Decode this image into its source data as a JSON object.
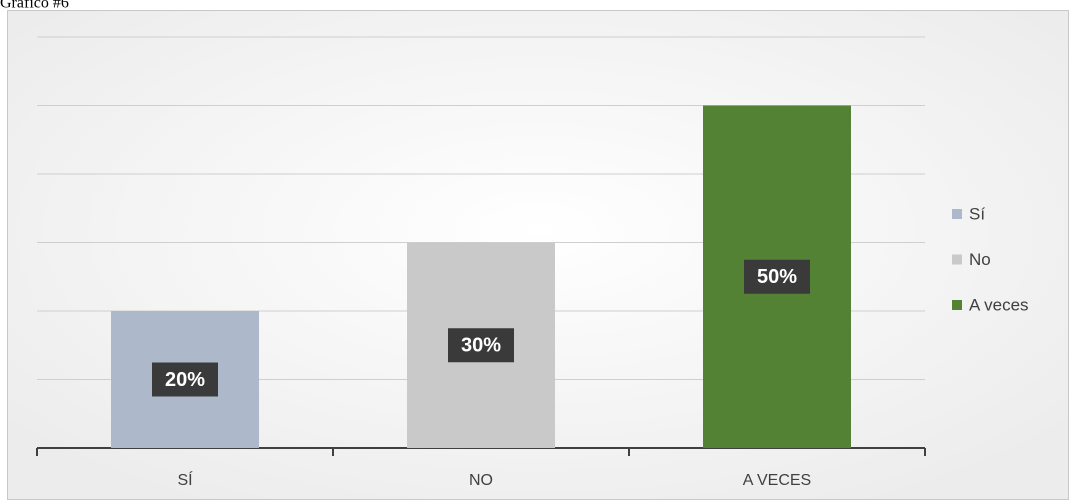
{
  "chart_data": {
    "type": "bar",
    "title": "Gráfico #6",
    "categories": [
      "SÍ",
      "NO",
      "A VECES"
    ],
    "values": [
      20,
      30,
      50
    ],
    "value_labels": [
      "20%",
      "30%",
      "50%"
    ],
    "colors": [
      "#adb9ca",
      "#c9c9c9",
      "#548235"
    ],
    "legend": [
      "Sí",
      "No",
      "A veces"
    ],
    "legend_position": "right",
    "ylim": [
      0,
      60
    ],
    "yticks": [
      0,
      10,
      20,
      30,
      40,
      50,
      60
    ],
    "grid": true
  }
}
